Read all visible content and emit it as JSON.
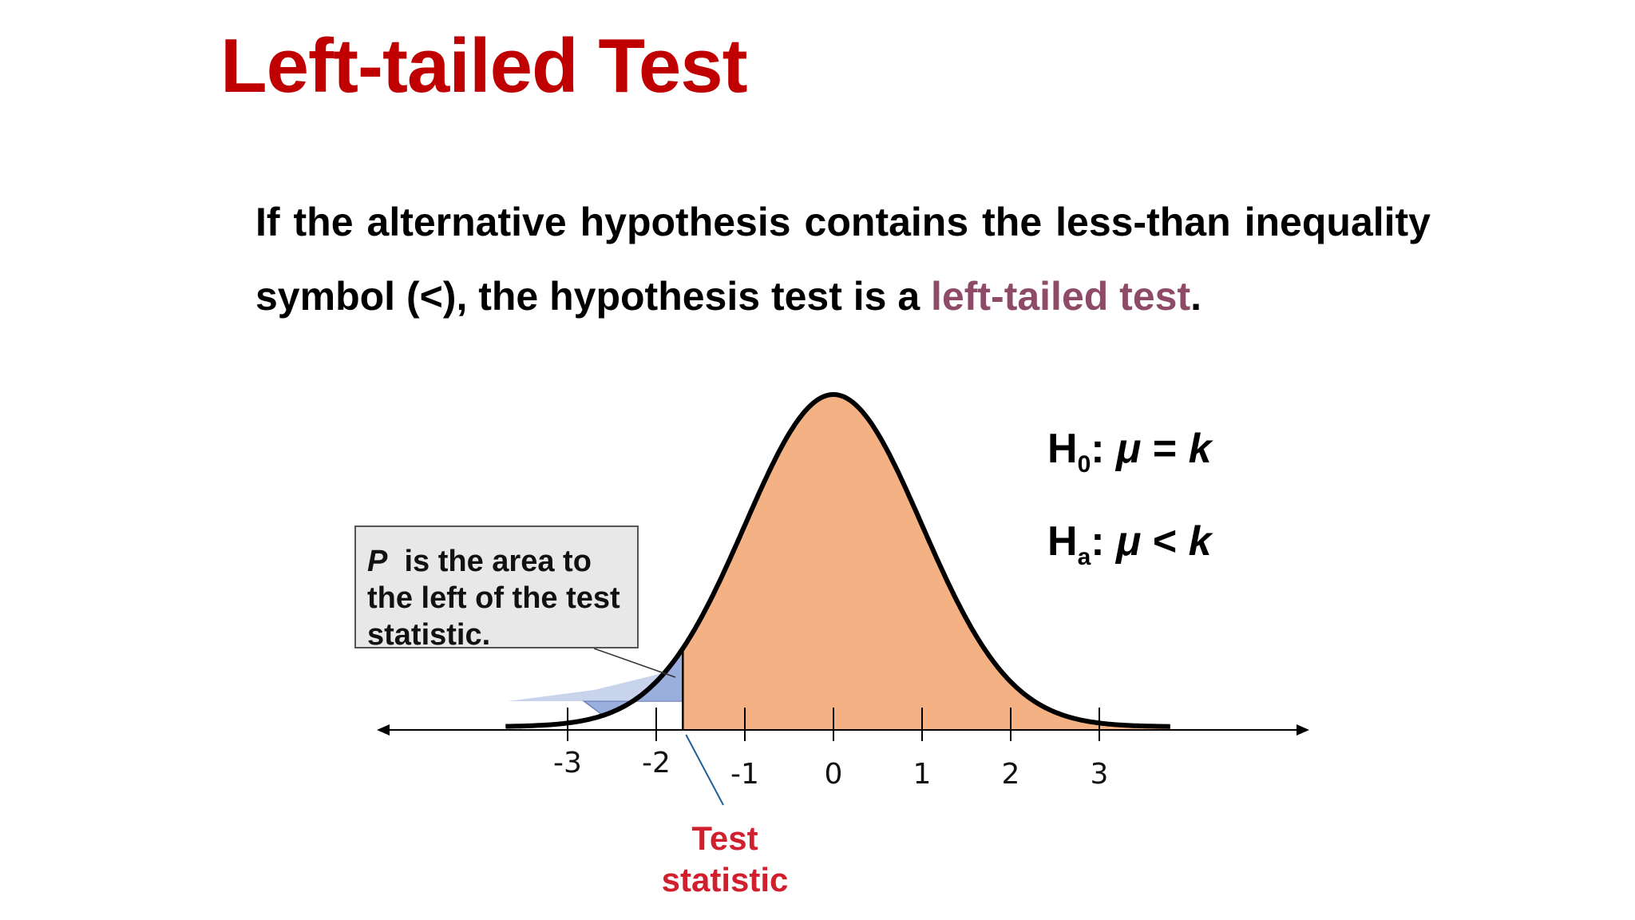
{
  "slide": {
    "title": "Left-tailed Test",
    "body": {
      "text_before": "If the alternative hypothesis contains the less-than inequality symbol (<), the hypothesis test is a ",
      "highlight": "left-tailed test",
      "text_after": "."
    },
    "colors": {
      "title": "#c00000",
      "highlight": "#8e4b68",
      "curve_fill": "#f4b183",
      "tail_fill": "#9aafdd",
      "test_statistic_label": "#d0202e",
      "leader_line": "#1f5f9a"
    }
  },
  "hypotheses": {
    "null": {
      "letter": "H",
      "subscript": "0",
      "colon": ":",
      "mu": "μ",
      "op": "=",
      "k": "k"
    },
    "alt": {
      "letter": "H",
      "subscript": "a",
      "colon": ":",
      "mu": "μ",
      "op": "<",
      "k": "k"
    }
  },
  "callout": {
    "p_symbol": "P",
    "text": "is the area to the left of the test statistic."
  },
  "distribution": {
    "type": "normal",
    "mean": 0,
    "sd": 1,
    "x_range": [
      -3.7,
      3.8
    ],
    "test_statistic": -1.7,
    "tick_values": [
      -3,
      -2,
      -1,
      0,
      1,
      2,
      3
    ],
    "tick_labels": [
      "-3",
      "-2",
      "-1",
      "0",
      "1",
      "2",
      "3"
    ]
  },
  "test_statistic_label": {
    "line1": "Test",
    "line2": "statistic"
  }
}
